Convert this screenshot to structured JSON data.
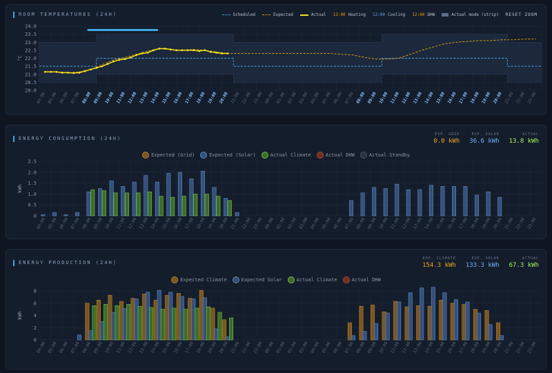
{
  "colors": {
    "scheduled": "#4aa3df",
    "expected_temp": "#e3a008",
    "actual_temp": "#f5e11b",
    "heating": "#f59e0b",
    "cooling": "#60a5fa",
    "dhw": "#f59e0b",
    "expected_grid": "#b07a2a",
    "expected_solar": "#4a6fa5",
    "actual_climate": "#6cbf3a",
    "actual_dhw": "#b0452c",
    "actual_standby": "#3c4658",
    "stat_orange": "#f5a524",
    "stat_blue": "#6fb3ff",
    "stat_green": "#a3f25a"
  },
  "panels": {
    "temps": {
      "title": "ROOM TEMPERATURES (24H)",
      "reset_label": "RESET ZOOM",
      "legend": {
        "scheduled": "Scheduled",
        "expected": "Expected",
        "actual": "Actual",
        "heating_time": "12:00",
        "heating": "Heating",
        "cooling_time": "12:00",
        "cooling": "Cooling",
        "dhw_time": "12:00",
        "dhw": "DHW",
        "mode": "Actual mode (strip)"
      }
    },
    "consumption": {
      "title": "ENERGY CONSUMPTION (24H)",
      "stats": [
        {
          "label": "EXP. GRID",
          "value": "0.0 kWh",
          "color_key": "stat_orange"
        },
        {
          "label": "EXP. SOLAR",
          "value": "36.6 kWh",
          "color_key": "stat_blue"
        },
        {
          "label": "ACTUAL",
          "value": "13.8 kWh",
          "color_key": "stat_green"
        }
      ],
      "legend": [
        "Expected (Grid)",
        "Expected (Solar)",
        "Actual Climate",
        "Actual DHW",
        "Actual Standby"
      ]
    },
    "production": {
      "title": "ENERGY PRODUCTION (24H)",
      "stats": [
        {
          "label": "EXP. CLIMATE",
          "value": "154.3 kWh",
          "color_key": "stat_orange"
        },
        {
          "label": "EXP. SOLAR",
          "value": "133.3 kWh",
          "color_key": "stat_blue"
        },
        {
          "label": "ACTUAL",
          "value": "67.3 kWh",
          "color_key": "stat_green"
        }
      ],
      "legend": [
        "Expected Climate",
        "Expected Solar",
        "Actual Climate",
        "Actual DHW"
      ]
    }
  },
  "chart_data": [
    {
      "type": "line",
      "title": "ROOM TEMPERATURES (24H)",
      "ylabel": "°C",
      "ylim": [
        20.0,
        24.0
      ],
      "yticks": [
        "24.0",
        "23.5",
        "23.0",
        "22.5",
        "22.0",
        "21.5",
        "21.0",
        "20.5",
        "20.0"
      ],
      "x": [
        "04:00",
        "05:00",
        "06:00",
        "07:00",
        "08:00",
        "09:00",
        "10:00",
        "11:00",
        "12:00",
        "13:00",
        "14:00",
        "15:00",
        "16:00",
        "17:00",
        "18:00",
        "19:00",
        "20:00",
        "21:00",
        "22:00",
        "23:00",
        "00:00",
        "01:00",
        "02:00",
        "03:00",
        "04:00",
        "05:00",
        "06:00",
        "07:00",
        "08:00",
        "09:00",
        "10:00",
        "11:00",
        "12:00",
        "13:00",
        "14:00",
        "15:00",
        "16:00",
        "17:00",
        "18:00",
        "19:00",
        "20:00",
        "21:00",
        "22:00",
        "23:00"
      ],
      "x_highlight": [
        4,
        5,
        6,
        7,
        8,
        9,
        10,
        11,
        12,
        13,
        14,
        15,
        16,
        28,
        29,
        30,
        31,
        32,
        33,
        34,
        35,
        36,
        37,
        38,
        39,
        40
      ],
      "scheduled": [
        21.5,
        21.5,
        21.5,
        21.5,
        21.5,
        22.0,
        22.0,
        22.0,
        22.0,
        22.0,
        22.0,
        22.0,
        22.0,
        22.0,
        22.0,
        22.0,
        22.0,
        21.5,
        21.5,
        21.5,
        21.5,
        21.5,
        21.5,
        21.5,
        21.5,
        21.5,
        21.5,
        21.5,
        21.5,
        21.5,
        22.0,
        22.0,
        22.0,
        22.0,
        22.0,
        22.0,
        22.0,
        22.0,
        22.0,
        22.0,
        22.0,
        21.5,
        21.5,
        21.5
      ],
      "band_low": [
        20.5,
        20.5,
        20.5,
        20.5,
        20.5,
        21.0,
        21.0,
        21.0,
        21.0,
        21.0,
        21.0,
        21.0,
        21.0,
        21.0,
        21.0,
        21.0,
        21.0,
        20.5,
        20.5,
        20.5,
        20.5,
        20.5,
        20.5,
        20.5,
        20.5,
        20.5,
        20.5,
        20.5,
        20.5,
        20.5,
        21.0,
        21.0,
        21.0,
        21.0,
        21.0,
        21.0,
        21.0,
        21.0,
        21.0,
        21.0,
        21.0,
        20.5,
        20.5,
        20.5
      ],
      "band_high": [
        23.0,
        23.0,
        23.0,
        23.0,
        23.0,
        23.5,
        23.5,
        23.5,
        23.5,
        23.5,
        23.5,
        23.5,
        23.5,
        23.5,
        23.5,
        23.5,
        23.5,
        23.0,
        23.0,
        23.0,
        23.0,
        23.0,
        23.0,
        23.0,
        23.0,
        23.0,
        23.0,
        23.0,
        23.0,
        23.0,
        23.5,
        23.5,
        23.5,
        23.5,
        23.5,
        23.5,
        23.5,
        23.5,
        23.5,
        23.5,
        23.5,
        23.0,
        23.0,
        23.0
      ],
      "expected": [
        21.15,
        21.15,
        21.1,
        21.15,
        21.3,
        21.6,
        21.9,
        22.05,
        22.25,
        22.45,
        22.6,
        22.55,
        22.5,
        22.55,
        22.5,
        22.4,
        22.3,
        22.3,
        22.3,
        22.3,
        22.3,
        22.3,
        22.3,
        22.3,
        22.3,
        22.3,
        22.25,
        22.2,
        22.05,
        21.95,
        21.95,
        22.0,
        22.25,
        22.5,
        22.7,
        22.9,
        23.0,
        23.05,
        23.1,
        23.1,
        23.15,
        23.15,
        23.2,
        23.2
      ],
      "actual": [
        [
          0,
          21.15
        ],
        [
          0.5,
          21.15
        ],
        [
          1,
          21.15
        ],
        [
          1.5,
          21.1
        ],
        [
          2,
          21.1
        ],
        [
          2.5,
          21.08
        ],
        [
          3,
          21.1
        ],
        [
          3.5,
          21.2
        ],
        [
          4,
          21.3
        ],
        [
          4.5,
          21.4
        ],
        [
          5,
          21.5
        ],
        [
          5.5,
          21.65
        ],
        [
          6,
          21.8
        ],
        [
          6.5,
          21.9
        ],
        [
          7,
          21.95
        ],
        [
          7.5,
          22.05
        ],
        [
          8,
          22.2
        ],
        [
          8.5,
          22.3
        ],
        [
          9,
          22.35
        ],
        [
          9.5,
          22.5
        ],
        [
          10,
          22.6
        ],
        [
          10.5,
          22.6
        ],
        [
          11,
          22.55
        ],
        [
          11.5,
          22.5
        ],
        [
          12,
          22.5
        ],
        [
          12.5,
          22.5
        ],
        [
          13,
          22.5
        ],
        [
          13.5,
          22.45
        ],
        [
          14,
          22.5
        ],
        [
          14.5,
          22.4
        ],
        [
          15,
          22.35
        ],
        [
          15.5,
          22.3
        ],
        [
          16,
          22.3
        ]
      ],
      "mode_strip": {
        "start_hour": 4.2,
        "end_hour": 10.4,
        "mode": "Heating"
      }
    },
    {
      "type": "bar",
      "title": "ENERGY CONSUMPTION (24H)",
      "ylabel": "kWh",
      "ylim": [
        0,
        2.5
      ],
      "yticks": [
        "2.5",
        "2.0",
        "1.5",
        "1.0",
        "0.5",
        "0"
      ],
      "x": [
        "04:00",
        "05:00",
        "06:00",
        "07:00",
        "08:00",
        "09:00",
        "10:00",
        "11:00",
        "12:00",
        "13:00",
        "14:00",
        "15:00",
        "16:00",
        "17:00",
        "18:00",
        "19:00",
        "20:00",
        "21:00",
        "22:00",
        "23:00",
        "00:00",
        "01:00",
        "02:00",
        "03:00",
        "04:00",
        "05:00",
        "06:00",
        "07:00",
        "08:00",
        "09:00",
        "10:00",
        "11:00",
        "12:00",
        "13:00",
        "14:00",
        "15:00",
        "16:00",
        "17:00",
        "18:00",
        "19:00",
        "20:00",
        "21:00",
        "22:00",
        "23:00"
      ],
      "series": [
        {
          "name": "Expected (Solar)",
          "values": [
            0.05,
            0.15,
            0.05,
            0.15,
            1.1,
            1.25,
            1.6,
            1.35,
            1.55,
            1.85,
            1.55,
            1.95,
            2.0,
            1.7,
            2.05,
            1.3,
            0.8,
            0.15,
            0,
            0,
            0,
            0,
            0,
            0,
            0,
            0,
            0,
            0.7,
            1.05,
            1.3,
            1.25,
            1.45,
            1.2,
            1.2,
            1.4,
            1.35,
            1.35,
            1.35,
            0.95,
            1.1,
            0.85,
            0,
            0,
            0
          ]
        },
        {
          "name": "Actual Climate",
          "values": [
            0,
            0,
            0,
            0,
            1.2,
            1.15,
            1.05,
            1.05,
            1.05,
            1.1,
            0.9,
            0.85,
            0.9,
            1.0,
            1.0,
            0.9,
            0.7,
            0,
            0,
            0,
            0,
            0,
            0,
            0,
            0,
            0,
            0,
            0,
            0,
            0,
            0,
            0,
            0,
            0,
            0,
            0,
            0,
            0,
            0,
            0,
            0,
            0,
            0,
            0
          ]
        }
      ]
    },
    {
      "type": "bar",
      "title": "ENERGY PRODUCTION (24H)",
      "ylabel": "kWh",
      "ylim": [
        0,
        8
      ],
      "yticks": [
        "8",
        "6",
        "4",
        "2",
        "0"
      ],
      "x": [
        "04:00",
        "05:00",
        "06:00",
        "07:00",
        "08:00",
        "09:00",
        "10:00",
        "11:00",
        "12:00",
        "13:00",
        "14:00",
        "15:00",
        "16:00",
        "17:00",
        "18:00",
        "19:00",
        "20:00",
        "21:00",
        "22:00",
        "23:00",
        "00:00",
        "01:00",
        "02:00",
        "03:00",
        "04:00",
        "05:00",
        "06:00",
        "07:00",
        "08:00",
        "09:00",
        "10:00",
        "11:00",
        "12:00",
        "13:00",
        "14:00",
        "15:00",
        "16:00",
        "17:00",
        "18:00",
        "19:00",
        "20:00",
        "21:00",
        "22:00",
        "23:00"
      ],
      "series": [
        {
          "name": "Expected Climate",
          "values": [
            0,
            0,
            0,
            0,
            6.0,
            6.5,
            7.3,
            6.3,
            6.8,
            7.5,
            6.5,
            7.3,
            7.6,
            6.8,
            8.1,
            5.2,
            3.3,
            0,
            0,
            0,
            0,
            0,
            0,
            0,
            0,
            0,
            0,
            2.8,
            5.5,
            5.7,
            4.6,
            6.3,
            5.4,
            5.6,
            5.5,
            6.5,
            6.0,
            5.8,
            5.0,
            4.8,
            2.8,
            0,
            0,
            0
          ]
        },
        {
          "name": "Expected Solar",
          "values": [
            0,
            0,
            0,
            0.8,
            1.5,
            3.0,
            4.5,
            5.1,
            6.7,
            7.8,
            8.1,
            7.8,
            7.1,
            6.7,
            6.9,
            1.8,
            0.5,
            0,
            0,
            0,
            0,
            0,
            0,
            0,
            0,
            0,
            0,
            0.7,
            1.4,
            2.7,
            4.4,
            6.2,
            7.7,
            8.5,
            8.6,
            7.7,
            6.6,
            6.2,
            4.4,
            2.5,
            0.7,
            0,
            0,
            0
          ]
        },
        {
          "name": "Actual Climate",
          "values": [
            0,
            0,
            0,
            0,
            5.6,
            5.8,
            5.6,
            5.8,
            5.5,
            5.3,
            5.0,
            5.2,
            5.0,
            5.2,
            5.4,
            4.5,
            3.6,
            0,
            0,
            0,
            0,
            0,
            0,
            0,
            0,
            0,
            0,
            0,
            0,
            0,
            0,
            0,
            0,
            0,
            0,
            0,
            0,
            0,
            0,
            0,
            0,
            0,
            0,
            0
          ]
        }
      ]
    }
  ]
}
